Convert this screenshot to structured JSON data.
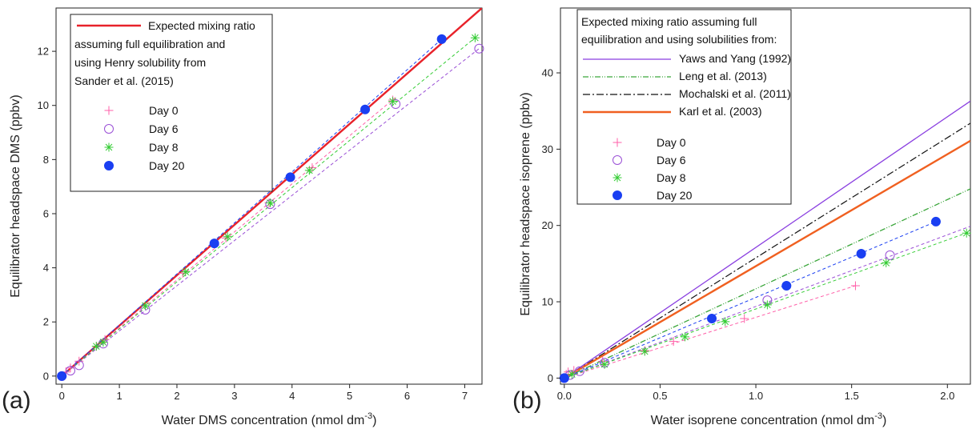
{
  "chart_data": [
    {
      "type": "scatter",
      "panel_label": "(a)",
      "xlabel": "Water DMS concentration (nmol dm",
      "xlabel_sup": "-3",
      "xlabel_end": ")",
      "ylabel": "Equilibrator headspace DMS (ppbv)",
      "xlim": [
        -0.1,
        7.3
      ],
      "ylim": [
        -0.3,
        13.6
      ],
      "xticks": [
        0,
        1,
        2,
        3,
        4,
        5,
        6,
        7
      ],
      "xtick_labels": [
        "0",
        "1",
        "2",
        "3",
        "4",
        "5",
        "6",
        "7"
      ],
      "yticks": [
        0,
        2,
        4,
        6,
        8,
        10,
        12
      ],
      "ytick_labels": [
        "0",
        "2",
        "4",
        "6",
        "8",
        "10",
        "12"
      ],
      "legend_position": "top-left",
      "legend_line_text": [
        "Expected mixing ratio",
        "assuming full equilibration and",
        "using Henry solubility from",
        "Sander et al. (2015)"
      ],
      "reference_lines": [
        {
          "name": "Expected mixing ratio assuming full equilibration and using Henry solubility from Sander et al. (2015)",
          "color": "#e8222a",
          "dash": "",
          "width": 2.4,
          "x": [
            0,
            7.3
          ],
          "y": [
            0,
            13.6
          ]
        }
      ],
      "series": [
        {
          "name": "Day 0",
          "marker": "plus",
          "color": "#ff5fa8",
          "fit_dash": "4,3",
          "x": [
            0,
            0.07,
            0.15,
            0.3,
            0.6,
            0.75,
            1.45,
            2.1,
            2.85,
            3.6,
            4.35,
            5.75
          ],
          "y": [
            0,
            0.15,
            0.3,
            0.55,
            1.1,
            1.35,
            2.6,
            3.8,
            5.1,
            6.4,
            7.7,
            10.2
          ],
          "fit_x": [
            0,
            5.8
          ],
          "fit_y": [
            0,
            10.3
          ]
        },
        {
          "name": "Day 6",
          "marker": "circle",
          "color": "#9a4fd6",
          "fit_dash": "4,3",
          "x": [
            0,
            0.15,
            0.3,
            0.72,
            1.45,
            3.62,
            5.8,
            7.25
          ],
          "y": [
            0,
            0.2,
            0.4,
            1.2,
            2.45,
            6.35,
            10.05,
            12.1
          ],
          "fit_x": [
            0,
            7.25
          ],
          "fit_y": [
            0,
            12.1
          ]
        },
        {
          "name": "Day 8",
          "marker": "star",
          "color": "#33cc33",
          "fit_dash": "4,3",
          "x": [
            0,
            0.6,
            0.72,
            1.45,
            2.15,
            2.88,
            3.62,
            4.3,
            5.75,
            7.18
          ],
          "y": [
            0,
            1.1,
            1.25,
            2.6,
            3.85,
            5.15,
            6.4,
            7.6,
            10.15,
            12.5
          ],
          "fit_x": [
            0,
            7.18
          ],
          "fit_y": [
            0,
            12.5
          ]
        },
        {
          "name": "Day 20",
          "marker": "dot",
          "color": "#1a3ff2",
          "fit_dash": "4,3",
          "x": [
            0,
            2.65,
            3.97,
            5.27,
            6.6
          ],
          "y": [
            0,
            4.9,
            7.35,
            9.85,
            12.45
          ],
          "fit_x": [
            0,
            6.6
          ],
          "fit_y": [
            0,
            12.45
          ]
        }
      ]
    },
    {
      "type": "scatter",
      "panel_label": "(b)",
      "xlabel": "Water isoprene concentration (nmol dm",
      "xlabel_sup": "-3",
      "xlabel_end": ")",
      "ylabel": "Equilibrator headspace isoprene (ppbv)",
      "xlim": [
        -0.02,
        2.12
      ],
      "ylim": [
        -0.8,
        48.5
      ],
      "xticks": [
        0,
        0.5,
        1,
        1.5,
        2
      ],
      "xtick_labels": [
        "0.0",
        "0.5",
        "1.0",
        "1.5",
        "2.0"
      ],
      "yticks": [
        0,
        10,
        20,
        30,
        40
      ],
      "ytick_labels": [
        "0",
        "10",
        "20",
        "30",
        "40"
      ],
      "legend_position": "top-left",
      "legend_title": [
        "Expected mixing ratio assuming full",
        "equilibration and using solubilities from:"
      ],
      "reference_lines": [
        {
          "name": "Yaws and Yang (1992)",
          "color": "#8a3fe0",
          "dash": "",
          "width": 1.3,
          "x": [
            0,
            2.12
          ],
          "y": [
            0,
            36.3
          ]
        },
        {
          "name": "Leng et al. (2013)",
          "color": "#3aa63a",
          "dash": "7,2,1,2,1,2",
          "width": 1.3,
          "x": [
            0,
            2.12
          ],
          "y": [
            0,
            24.8
          ]
        },
        {
          "name": "Mochalski et al. (2011)",
          "color": "#111111",
          "dash": "9,3,2,3",
          "width": 1.2,
          "x": [
            0,
            2.12
          ],
          "y": [
            0,
            33.4
          ]
        },
        {
          "name": "Karl et al. (2003)",
          "color": "#f06020",
          "dash": "",
          "width": 2.4,
          "x": [
            0,
            2.12
          ],
          "y": [
            0,
            31.1
          ]
        }
      ],
      "series": [
        {
          "name": "Day 0",
          "marker": "plus",
          "color": "#ff5fa8",
          "fit_dash": "4,3",
          "x": [
            0,
            0.01,
            0.02,
            0.05,
            0.2,
            0.42,
            0.57,
            0.94,
            1.52
          ],
          "y": [
            0,
            0.5,
            0.8,
            1.0,
            2.2,
            3.6,
            4.8,
            7.8,
            12.1
          ],
          "fit_x": [
            0,
            1.52
          ],
          "fit_y": [
            0,
            12.1
          ]
        },
        {
          "name": "Day 6",
          "marker": "circle",
          "color": "#9a4fd6",
          "fit_dash": "4,3",
          "x": [
            0,
            0.03,
            0.08,
            0.21,
            1.06,
            1.7
          ],
          "y": [
            0,
            0.4,
            0.9,
            2.0,
            10.2,
            16.1
          ],
          "fit_x": [
            0,
            2.12
          ],
          "fit_y": [
            0,
            19.9
          ]
        },
        {
          "name": "Day 8",
          "marker": "star",
          "color": "#33cc33",
          "fit_dash": "4,3",
          "x": [
            0,
            0.04,
            0.21,
            0.42,
            0.63,
            0.84,
            1.06,
            1.68,
            2.1
          ],
          "y": [
            0,
            0.5,
            1.8,
            3.5,
            5.4,
            7.4,
            9.6,
            15.1,
            19.0
          ],
          "fit_x": [
            0,
            2.12
          ],
          "fit_y": [
            0,
            19.2
          ]
        },
        {
          "name": "Day 20",
          "marker": "dot",
          "color": "#1a3ff2",
          "fit_dash": "4,3",
          "x": [
            0,
            0.77,
            1.16,
            1.55,
            1.94
          ],
          "y": [
            0,
            7.8,
            12.1,
            16.3,
            20.5
          ],
          "fit_x": [
            0,
            1.94
          ],
          "fit_y": [
            0,
            20.5
          ]
        }
      ]
    }
  ]
}
